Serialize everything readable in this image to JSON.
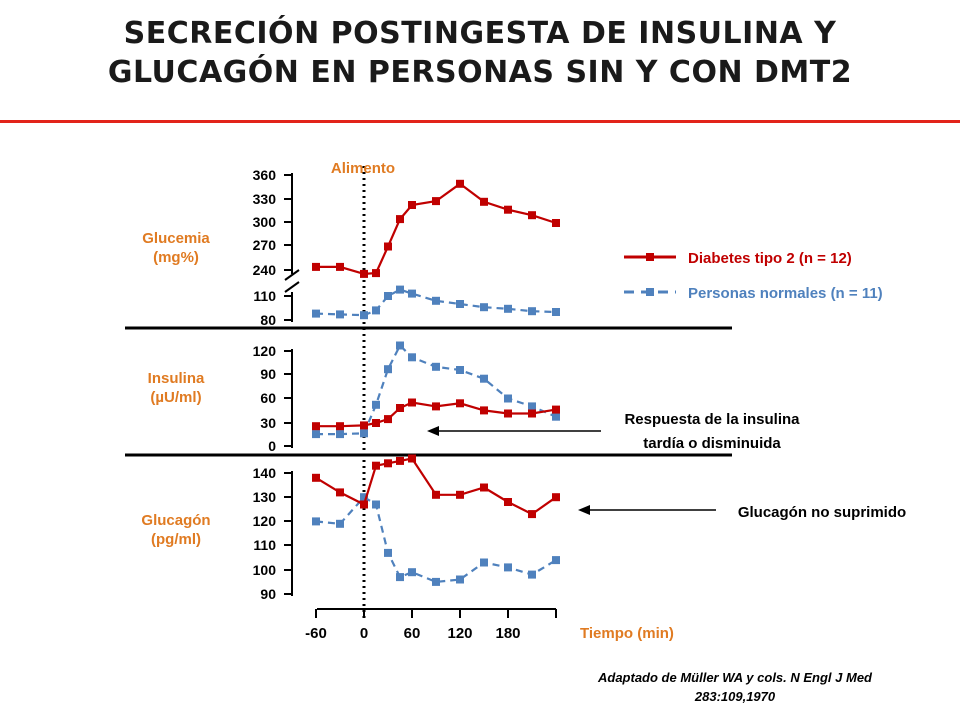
{
  "title": {
    "line1": "SECRECIÓN POSTINGESTA DE INSULINA Y",
    "line2": "GLUCAGÓN EN PERSONAS SIN Y CON DMT2"
  },
  "colors": {
    "title_rule": "#e2231a",
    "diabetes": "#c00000",
    "normal": "#4f81bd",
    "panel_label": "#e07b22",
    "axis": "#000000"
  },
  "citation": {
    "line1": "Adaptado de Müller WA y cols. N Engl J Med",
    "line2": "283:109,1970"
  },
  "chart_data": {
    "type": "line",
    "annotation_food": "Alimento",
    "xlabel": "Tiempo (min)",
    "x_tick_labels": [
      "-60",
      "0",
      "60",
      "120",
      "180"
    ],
    "x": [
      -60,
      -30,
      0,
      15,
      30,
      45,
      60,
      90,
      120,
      150,
      180,
      210,
      240
    ],
    "legend": {
      "diabetes": "Diabetes tipo 2 (n = 12)",
      "normal": "Personas normales (n = 11)"
    },
    "panels": [
      {
        "key": "glucemia",
        "label_line1": "Glucemia",
        "label_line2": "(mg%)",
        "ticks": [
          "360",
          "330",
          "300",
          "270",
          "240",
          "110",
          "80"
        ],
        "axis_break": true,
        "series": [
          {
            "name": "Diabetes tipo 2 (n = 12)",
            "values": [
              244,
              244,
              235,
              236,
              270,
              305,
              323,
              328,
              350,
              327,
              317,
              310,
              300
            ]
          },
          {
            "name": "Personas normales (n = 11)",
            "values": [
              88,
              87,
              86,
              92,
              110,
              118,
              113,
              104,
              100,
              96,
              94,
              91,
              90
            ]
          }
        ]
      },
      {
        "key": "insulina",
        "label_line1": "Insulina",
        "label_line2": "(µU/ml)",
        "ticks": [
          "120",
          "90",
          "60",
          "30",
          "0"
        ],
        "series": [
          {
            "name": "Diabetes tipo 2 (n = 12)",
            "values": [
              25,
              25,
              26,
              29,
              34,
              48,
              55,
              50,
              54,
              45,
              41,
              41,
              46
            ]
          },
          {
            "name": "Personas normales (n = 11)",
            "values": [
              15,
              15,
              16,
              52,
              97,
              127,
              112,
              100,
              96,
              85,
              60,
              50,
              37
            ]
          }
        ]
      },
      {
        "key": "glucagon",
        "label_line1": "Glucagón",
        "label_line2": "(pg/ml)",
        "ticks": [
          "140",
          "130",
          "120",
          "110",
          "100",
          "90"
        ],
        "series": [
          {
            "name": "Diabetes tipo 2 (n = 12)",
            "values": [
              138,
              132,
              127,
              143,
              144,
              145,
              146,
              131,
              131,
              134,
              128,
              123,
              130
            ]
          },
          {
            "name": "Personas normales (n = 11)",
            "values": [
              120,
              119,
              130,
              127,
              107,
              97,
              99,
              95,
              96,
              103,
              101,
              98,
              104
            ]
          }
        ]
      }
    ],
    "annotations": [
      {
        "line1": "Respuesta de la insulina",
        "line2": "tardía o disminuida",
        "panel": "insulina"
      },
      {
        "line1": "Glucagón no suprimido",
        "panel": "glucagon"
      }
    ]
  }
}
